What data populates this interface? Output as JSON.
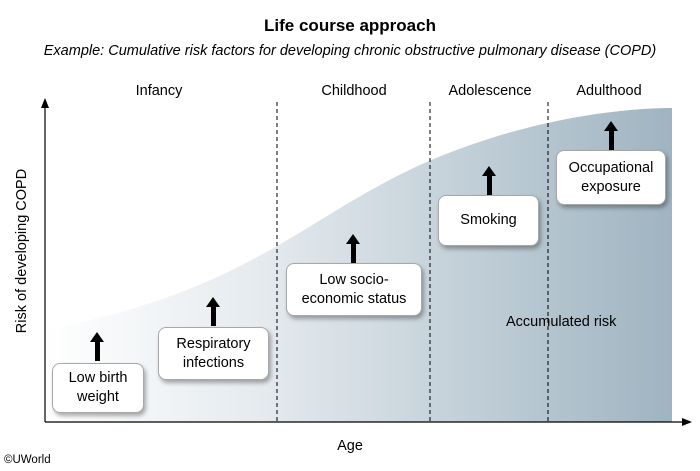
{
  "title": "Life course approach",
  "subtitle": "Example: Cumulative risk factors for developing chronic obstructive pulmonary disease (COPD)",
  "phases": [
    "Infancy",
    "Childhood",
    "Adolescence",
    "Adulthood"
  ],
  "y_axis_label": "Risk of developing COPD",
  "x_axis_label": "Age",
  "risk_factors": [
    "Low birth\nweight",
    "Respiratory\ninfections",
    "Low socio-\neconomic status",
    "Smoking",
    "Occupational\nexposure"
  ],
  "accumulated_label": "Accumulated risk",
  "copyright": "©UWorld",
  "colors": {
    "gradient_start": "#ffffff",
    "gradient_end": "#9fb4c1",
    "axis": "#000000"
  }
}
